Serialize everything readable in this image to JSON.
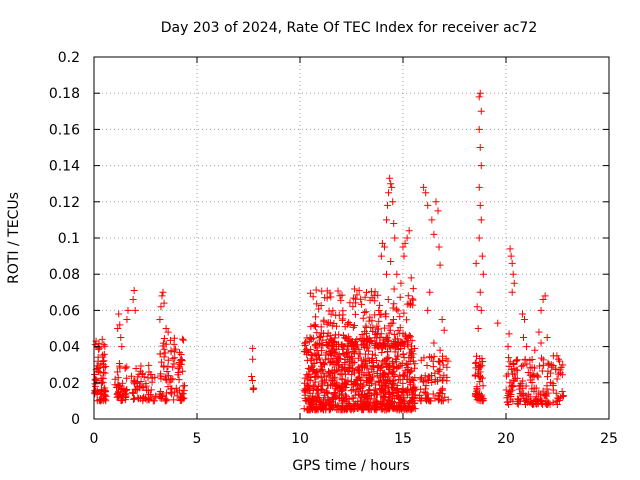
{
  "chart_data": {
    "type": "scatter",
    "title": "Day 203 of 2024, Rate Of TEC Index for receiver ac72",
    "xlabel": "GPS time / hours",
    "ylabel": "ROTI / TECUs",
    "xlim": [
      0,
      25
    ],
    "ylim": [
      0,
      0.2
    ],
    "xticks": [
      0,
      5,
      10,
      15,
      20,
      25
    ],
    "yticks": [
      0,
      0.02,
      0.04,
      0.06,
      0.08,
      0.1,
      0.12,
      0.14,
      0.16,
      0.18,
      0.2
    ],
    "xtick_labels": [
      "0",
      "5",
      "10",
      "15",
      "20",
      "25"
    ],
    "ytick_labels": [
      "0",
      "0.02",
      "0.04",
      "0.06",
      "0.08",
      "0.1",
      "0.12",
      "0.14",
      "0.16",
      "0.18",
      "0.2"
    ],
    "grid": true,
    "marker": "plus",
    "color": "#ff0000",
    "clusters": [
      {
        "x": [
          0.0,
          0.6
        ],
        "y": [
          0.01,
          0.044
        ],
        "n": 70
      },
      {
        "x": [
          1.0,
          1.6
        ],
        "y": [
          0.01,
          0.032
        ],
        "n": 45
      },
      {
        "x": [
          1.8,
          3.0
        ],
        "y": [
          0.01,
          0.03
        ],
        "n": 60
      },
      {
        "x": [
          3.1,
          4.4
        ],
        "y": [
          0.01,
          0.045
        ],
        "n": 90
      },
      {
        "x": [
          7.6,
          7.8
        ],
        "y": [
          0.016,
          0.03
        ],
        "n": 5
      },
      {
        "x": [
          10.2,
          15.6
        ],
        "y": [
          0.005,
          0.045
        ],
        "n": 900
      },
      {
        "x": [
          10.5,
          15.5
        ],
        "y": [
          0.04,
          0.072
        ],
        "n": 220
      },
      {
        "x": [
          15.8,
          17.2
        ],
        "y": [
          0.01,
          0.035
        ],
        "n": 80
      },
      {
        "x": [
          18.5,
          18.9
        ],
        "y": [
          0.01,
          0.035
        ],
        "n": 50
      },
      {
        "x": [
          20.0,
          22.8
        ],
        "y": [
          0.008,
          0.035
        ],
        "n": 170
      }
    ],
    "points": [
      [
        0.1,
        0.043
      ],
      [
        0.2,
        0.04
      ],
      [
        0.4,
        0.044
      ],
      [
        1.15,
        0.05
      ],
      [
        1.2,
        0.058
      ],
      [
        1.25,
        0.052
      ],
      [
        1.3,
        0.045
      ],
      [
        1.35,
        0.04
      ],
      [
        1.6,
        0.055
      ],
      [
        1.65,
        0.06
      ],
      [
        1.9,
        0.066
      ],
      [
        1.95,
        0.071
      ],
      [
        2.0,
        0.06
      ],
      [
        3.2,
        0.055
      ],
      [
        3.25,
        0.062
      ],
      [
        3.3,
        0.068
      ],
      [
        3.35,
        0.07
      ],
      [
        3.4,
        0.064
      ],
      [
        3.5,
        0.05
      ],
      [
        3.6,
        0.048
      ],
      [
        7.7,
        0.039
      ],
      [
        7.7,
        0.033
      ],
      [
        13.95,
        0.09
      ],
      [
        14.0,
        0.097
      ],
      [
        14.1,
        0.095
      ],
      [
        14.2,
        0.11
      ],
      [
        14.25,
        0.118
      ],
      [
        14.3,
        0.125
      ],
      [
        14.35,
        0.133
      ],
      [
        14.4,
        0.13
      ],
      [
        14.45,
        0.128
      ],
      [
        14.5,
        0.12
      ],
      [
        14.55,
        0.108
      ],
      [
        14.6,
        0.1
      ],
      [
        14.2,
        0.08
      ],
      [
        14.4,
        0.087
      ],
      [
        14.7,
        0.08
      ],
      [
        15.0,
        0.095
      ],
      [
        15.1,
        0.097
      ],
      [
        15.2,
        0.1
      ],
      [
        15.3,
        0.104
      ],
      [
        15.05,
        0.09
      ],
      [
        14.9,
        0.075
      ],
      [
        15.4,
        0.078
      ],
      [
        15.5,
        0.072
      ],
      [
        16.0,
        0.128
      ],
      [
        16.1,
        0.125
      ],
      [
        16.2,
        0.118
      ],
      [
        16.4,
        0.11
      ],
      [
        16.5,
        0.102
      ],
      [
        16.6,
        0.12
      ],
      [
        16.7,
        0.115
      ],
      [
        16.75,
        0.095
      ],
      [
        16.8,
        0.085
      ],
      [
        16.3,
        0.07
      ],
      [
        16.2,
        0.06
      ],
      [
        16.9,
        0.055
      ],
      [
        17.0,
        0.049
      ],
      [
        16.5,
        0.042
      ],
      [
        16.8,
        0.038
      ],
      [
        18.55,
        0.086
      ],
      [
        18.6,
        0.062
      ],
      [
        18.7,
        0.178
      ],
      [
        18.75,
        0.18
      ],
      [
        18.8,
        0.17
      ],
      [
        18.7,
        0.16
      ],
      [
        18.75,
        0.15
      ],
      [
        18.8,
        0.14
      ],
      [
        18.7,
        0.128
      ],
      [
        18.75,
        0.118
      ],
      [
        18.8,
        0.11
      ],
      [
        18.7,
        0.1
      ],
      [
        18.85,
        0.09
      ],
      [
        18.9,
        0.08
      ],
      [
        18.75,
        0.07
      ],
      [
        18.8,
        0.06
      ],
      [
        18.65,
        0.05
      ],
      [
        19.6,
        0.053
      ],
      [
        20.2,
        0.094
      ],
      [
        20.25,
        0.09
      ],
      [
        20.3,
        0.086
      ],
      [
        20.35,
        0.08
      ],
      [
        20.4,
        0.075
      ],
      [
        20.3,
        0.07
      ],
      [
        20.15,
        0.047
      ],
      [
        20.1,
        0.04
      ],
      [
        20.8,
        0.058
      ],
      [
        20.9,
        0.055
      ],
      [
        20.85,
        0.045
      ],
      [
        21.0,
        0.04
      ],
      [
        21.4,
        0.038
      ],
      [
        21.6,
        0.048
      ],
      [
        21.7,
        0.042
      ],
      [
        21.8,
        0.066
      ],
      [
        21.9,
        0.068
      ],
      [
        21.7,
        0.06
      ],
      [
        22.0,
        0.045
      ],
      [
        22.2,
        0.03
      ],
      [
        22.6,
        0.032
      ]
    ]
  }
}
